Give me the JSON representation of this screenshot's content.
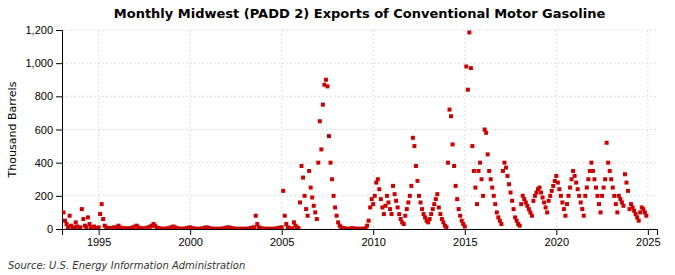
{
  "chart_data": {
    "type": "scatter",
    "title": "Monthly Midwest (PADD 2) Exports of Conventional Motor Gasoline",
    "ylabel": "Thousand Barrels",
    "source": "Source: U.S. Energy Information Administration",
    "color": "#CC0000",
    "marker": "square",
    "grid": true,
    "xlim": [
      1993.0,
      2025.5
    ],
    "xticks": [
      1995,
      2000,
      2005,
      2010,
      2015,
      2020,
      2025
    ],
    "ylim": [
      0,
      1200
    ],
    "yticks": [
      0,
      200,
      400,
      600,
      800,
      {
        "value": 1000,
        "label": "1,000"
      },
      {
        "value": 1200,
        "label": "1,200"
      }
    ],
    "x": [
      1993.083,
      1993.167,
      1993.25,
      1993.333,
      1993.417,
      1993.5,
      1993.583,
      1993.667,
      1993.75,
      1993.833,
      1993.917,
      1994.0,
      1994.083,
      1994.167,
      1994.25,
      1994.333,
      1994.417,
      1994.5,
      1994.583,
      1994.667,
      1994.75,
      1994.833,
      1994.917,
      1995.0,
      1995.083,
      1995.167,
      1995.25,
      1995.333,
      1995.417,
      1995.5,
      1995.583,
      1995.667,
      1995.75,
      1995.833,
      1995.917,
      1996.0,
      1996.083,
      1996.167,
      1996.25,
      1996.333,
      1996.417,
      1996.5,
      1996.583,
      1996.667,
      1996.75,
      1996.833,
      1996.917,
      1997.0,
      1997.083,
      1997.167,
      1997.25,
      1997.333,
      1997.417,
      1997.5,
      1997.583,
      1997.667,
      1997.75,
      1997.833,
      1997.917,
      1998.0,
      1998.083,
      1998.167,
      1998.25,
      1998.333,
      1998.417,
      1998.5,
      1998.583,
      1998.667,
      1998.75,
      1998.833,
      1998.917,
      1999.0,
      1999.083,
      1999.167,
      1999.25,
      1999.333,
      1999.417,
      1999.5,
      1999.583,
      1999.667,
      1999.75,
      1999.833,
      1999.917,
      2000.0,
      2000.083,
      2000.167,
      2000.25,
      2000.333,
      2000.417,
      2000.5,
      2000.583,
      2000.667,
      2000.75,
      2000.833,
      2000.917,
      2001.0,
      2001.083,
      2001.167,
      2001.25,
      2001.333,
      2001.417,
      2001.5,
      2001.583,
      2001.667,
      2001.75,
      2001.833,
      2001.917,
      2002.0,
      2002.083,
      2002.167,
      2002.25,
      2002.333,
      2002.417,
      2002.5,
      2002.583,
      2002.667,
      2002.75,
      2002.833,
      2002.917,
      2003.0,
      2003.083,
      2003.167,
      2003.25,
      2003.333,
      2003.417,
      2003.5,
      2003.583,
      2003.667,
      2003.75,
      2003.833,
      2003.917,
      2004.0,
      2004.083,
      2004.167,
      2004.25,
      2004.333,
      2004.417,
      2004.5,
      2004.583,
      2004.667,
      2004.75,
      2004.833,
      2004.917,
      2005.0,
      2005.083,
      2005.167,
      2005.25,
      2005.333,
      2005.417,
      2005.5,
      2005.583,
      2005.667,
      2005.75,
      2005.833,
      2005.917,
      2006.0,
      2006.083,
      2006.167,
      2006.25,
      2006.333,
      2006.417,
      2006.5,
      2006.583,
      2006.667,
      2006.75,
      2006.833,
      2006.917,
      2007.0,
      2007.083,
      2007.167,
      2007.25,
      2007.333,
      2007.417,
      2007.5,
      2007.583,
      2007.667,
      2007.75,
      2007.833,
      2007.917,
      2008.0,
      2008.083,
      2008.167,
      2008.25,
      2008.333,
      2008.417,
      2008.5,
      2008.583,
      2008.667,
      2008.75,
      2008.833,
      2008.917,
      2009.0,
      2009.083,
      2009.167,
      2009.25,
      2009.333,
      2009.417,
      2009.5,
      2009.583,
      2009.667,
      2009.75,
      2009.833,
      2009.917,
      2010.0,
      2010.083,
      2010.167,
      2010.25,
      2010.333,
      2010.417,
      2010.5,
      2010.583,
      2010.667,
      2010.75,
      2010.833,
      2010.917,
      2011.0,
      2011.083,
      2011.167,
      2011.25,
      2011.333,
      2011.417,
      2011.5,
      2011.583,
      2011.667,
      2011.75,
      2011.833,
      2011.917,
      2012.0,
      2012.083,
      2012.167,
      2012.25,
      2012.333,
      2012.417,
      2012.5,
      2012.583,
      2012.667,
      2012.75,
      2012.833,
      2012.917,
      2013.0,
      2013.083,
      2013.167,
      2013.25,
      2013.333,
      2013.417,
      2013.5,
      2013.583,
      2013.667,
      2013.75,
      2013.833,
      2013.917,
      2014.0,
      2014.083,
      2014.167,
      2014.25,
      2014.333,
      2014.417,
      2014.5,
      2014.583,
      2014.667,
      2014.75,
      2014.833,
      2014.917,
      2015.0,
      2015.083,
      2015.167,
      2015.25,
      2015.333,
      2015.417,
      2015.5,
      2015.583,
      2015.667,
      2015.75,
      2015.833,
      2015.917,
      2016.0,
      2016.083,
      2016.167,
      2016.25,
      2016.333,
      2016.417,
      2016.5,
      2016.583,
      2016.667,
      2016.75,
      2016.833,
      2016.917,
      2017.0,
      2017.083,
      2017.167,
      2017.25,
      2017.333,
      2017.417,
      2017.5,
      2017.583,
      2017.667,
      2017.75,
      2017.833,
      2017.917,
      2018.0,
      2018.083,
      2018.167,
      2018.25,
      2018.333,
      2018.417,
      2018.5,
      2018.583,
      2018.667,
      2018.75,
      2018.833,
      2018.917,
      2019.0,
      2019.083,
      2019.167,
      2019.25,
      2019.333,
      2019.417,
      2019.5,
      2019.583,
      2019.667,
      2019.75,
      2019.833,
      2019.917,
      2020.0,
      2020.083,
      2020.167,
      2020.25,
      2020.333,
      2020.417,
      2020.5,
      2020.583,
      2020.667,
      2020.75,
      2020.833,
      2020.917,
      2021.0,
      2021.083,
      2021.167,
      2021.25,
      2021.333,
      2021.417,
      2021.5,
      2021.583,
      2021.667,
      2021.75,
      2021.833,
      2021.917,
      2022.0,
      2022.083,
      2022.167,
      2022.25,
      2022.333,
      2022.417,
      2022.5,
      2022.583,
      2022.667,
      2022.75,
      2022.833,
      2022.917,
      2023.0,
      2023.083,
      2023.167,
      2023.25,
      2023.333,
      2023.417,
      2023.5,
      2023.583,
      2023.667,
      2023.75,
      2023.833,
      2023.917,
      2024.0,
      2024.083,
      2024.167,
      2024.25,
      2024.333,
      2024.417,
      2024.5,
      2024.583,
      2024.667,
      2024.75,
      2024.833,
      2024.917
    ],
    "values": [
      100,
      50,
      30,
      10,
      80,
      20,
      5,
      10,
      40,
      15,
      5,
      10,
      120,
      60,
      20,
      10,
      70,
      30,
      10,
      5,
      15,
      5,
      5,
      10,
      90,
      150,
      60,
      20,
      10,
      5,
      5,
      3,
      5,
      10,
      5,
      10,
      20,
      10,
      5,
      3,
      5,
      3,
      2,
      3,
      5,
      8,
      10,
      15,
      20,
      10,
      5,
      3,
      2,
      3,
      5,
      8,
      10,
      15,
      20,
      30,
      20,
      10,
      5,
      3,
      2,
      1,
      1,
      2,
      3,
      5,
      8,
      10,
      15,
      10,
      5,
      3,
      2,
      1,
      1,
      2,
      3,
      5,
      8,
      10,
      5,
      3,
      2,
      1,
      1,
      1,
      2,
      3,
      5,
      8,
      10,
      5,
      3,
      2,
      1,
      1,
      1,
      1,
      1,
      1,
      2,
      3,
      5,
      8,
      10,
      8,
      5,
      3,
      2,
      1,
      1,
      1,
      1,
      1,
      1,
      1,
      1,
      2,
      3,
      5,
      8,
      10,
      80,
      30,
      10,
      5,
      3,
      2,
      1,
      1,
      1,
      1,
      1,
      1,
      1,
      2,
      3,
      5,
      8,
      10,
      230,
      80,
      30,
      10,
      5,
      3,
      2,
      40,
      20,
      10,
      5,
      160,
      380,
      310,
      200,
      120,
      80,
      350,
      250,
      190,
      140,
      100,
      60,
      400,
      650,
      480,
      750,
      870,
      900,
      860,
      560,
      400,
      300,
      200,
      130,
      80,
      40,
      20,
      10,
      5,
      3,
      2,
      1,
      1,
      2,
      5,
      3,
      2,
      1,
      1,
      1,
      1,
      1,
      1,
      5,
      20,
      50,
      130,
      180,
      150,
      200,
      280,
      300,
      240,
      180,
      130,
      90,
      140,
      200,
      160,
      120,
      90,
      260,
      210,
      170,
      130,
      90,
      60,
      40,
      30,
      80,
      120,
      160,
      200,
      260,
      550,
      500,
      380,
      290,
      200,
      160,
      120,
      90,
      70,
      50,
      40,
      60,
      90,
      120,
      150,
      180,
      210,
      130,
      90,
      60,
      40,
      20,
      10,
      400,
      720,
      680,
      510,
      380,
      260,
      180,
      120,
      80,
      50,
      30,
      15,
      980,
      840,
      1185,
      970,
      500,
      350,
      250,
      150,
      350,
      400,
      300,
      200,
      600,
      580,
      450,
      350,
      300,
      250,
      200,
      150,
      100,
      70,
      50,
      30,
      350,
      400,
      370,
      320,
      270,
      220,
      170,
      120,
      70,
      50,
      30,
      20,
      150,
      200,
      180,
      160,
      140,
      120,
      100,
      80,
      170,
      200,
      220,
      240,
      250,
      220,
      190,
      160,
      130,
      100,
      170,
      200,
      230,
      260,
      290,
      320,
      280,
      240,
      200,
      160,
      120,
      80,
      150,
      200,
      250,
      300,
      350,
      320,
      280,
      240,
      200,
      160,
      120,
      80,
      200,
      250,
      300,
      350,
      400,
      350,
      300,
      250,
      200,
      150,
      100,
      200,
      250,
      300,
      520,
      400,
      350,
      300,
      250,
      200,
      150,
      100,
      200,
      180,
      160,
      140,
      330,
      280,
      230,
      120,
      150,
      130,
      110,
      90,
      70,
      50,
      100,
      130,
      120,
      100,
      80
    ]
  }
}
